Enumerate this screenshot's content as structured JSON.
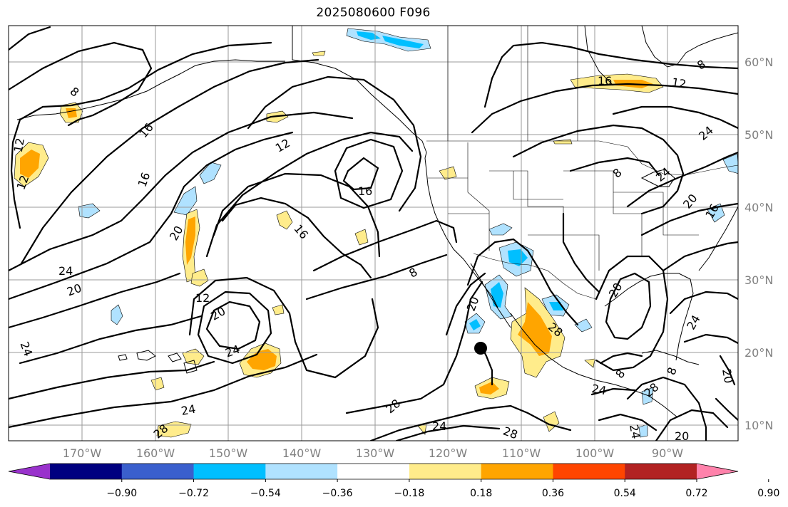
{
  "title": "2025080600 F096",
  "lat_labels": [
    "60°N",
    "50°N",
    "40°N",
    "30°N",
    "20°N",
    "10°N"
  ],
  "lon_labels": [
    "170°W",
    "160°W",
    "150°W",
    "140°W",
    "130°W",
    "120°W",
    "110°W",
    "100°W",
    "90°W"
  ],
  "colorbar": {
    "colors": [
      "#9932cc",
      "#000080",
      "#3a5fcd",
      "#00bfff",
      "#b0e2ff",
      "#ffffff",
      "#ffec8b",
      "#ffa500",
      "#ff4500",
      "#b22222",
      "#ff82ab"
    ],
    "tick_labels": [
      "−0.90",
      "−0.72",
      "−0.54",
      "−0.36",
      "−0.18",
      "0.18",
      "0.36",
      "0.54",
      "0.72",
      "0.90"
    ]
  },
  "contour_labels": [
    "8",
    "12",
    "16",
    "20",
    "24",
    "28"
  ],
  "contour_label_marks": [
    {
      "text": "8"
    },
    {
      "text": "12"
    },
    {
      "text": "16"
    },
    {
      "text": "12"
    },
    {
      "text": "16"
    },
    {
      "text": "12"
    },
    {
      "text": "16"
    },
    {
      "text": "24"
    },
    {
      "text": "20"
    },
    {
      "text": "20"
    },
    {
      "text": "12"
    },
    {
      "text": "16"
    },
    {
      "text": "20"
    },
    {
      "text": "24"
    },
    {
      "text": "24"
    },
    {
      "text": "8"
    },
    {
      "text": "20"
    },
    {
      "text": "28"
    },
    {
      "text": "28"
    },
    {
      "text": "24"
    },
    {
      "text": "28"
    },
    {
      "text": "24"
    },
    {
      "text": "16"
    },
    {
      "text": "12"
    },
    {
      "text": "8"
    },
    {
      "text": "24"
    },
    {
      "text": "24"
    },
    {
      "text": "20"
    },
    {
      "text": "16"
    },
    {
      "text": "20"
    },
    {
      "text": "24"
    },
    {
      "text": "8"
    },
    {
      "text": "28"
    },
    {
      "text": "20"
    },
    {
      "text": "8"
    },
    {
      "text": "24"
    },
    {
      "text": "20"
    },
    {
      "text": "28"
    },
    {
      "text": "8"
    },
    {
      "text": "24"
    }
  ]
}
